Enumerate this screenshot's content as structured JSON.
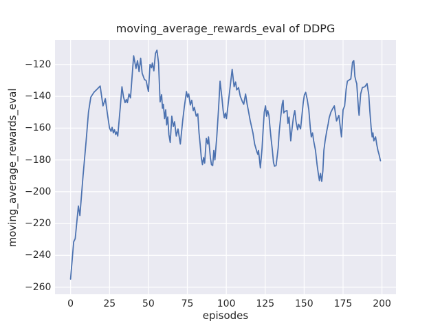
{
  "figure": {
    "background": "#ffffff"
  },
  "chart_data": {
    "type": "line",
    "title": "moving_average_rewards_eval of DDPG",
    "xlabel": "episodes",
    "ylabel": "moving_average_rewards_eval",
    "x_ticks": [
      0,
      25,
      50,
      75,
      100,
      125,
      150,
      175,
      200
    ],
    "x_tick_labels": [
      "0",
      "25",
      "50",
      "75",
      "100",
      "125",
      "150",
      "175",
      "200"
    ],
    "y_ticks": [
      -120,
      -140,
      -160,
      -180,
      -200,
      -220,
      -240,
      -260
    ],
    "y_tick_labels": [
      "−120",
      "−140",
      "−160",
      "−180",
      "−200",
      "−220",
      "−240",
      "−260"
    ],
    "xlim": [
      -10,
      209
    ],
    "ylim": [
      -264.5,
      -104.5
    ],
    "grid": true,
    "legend_position": "none",
    "style": {
      "plot_background": "#eaeaf2",
      "grid_color": "#ffffff",
      "line_color": "#4c72b0",
      "text_color": "#262626",
      "line_width": 1.8
    },
    "series": [
      {
        "name": "moving_average_rewards_eval",
        "points": [
          [
            0,
            -255
          ],
          [
            2,
            -231.5
          ],
          [
            3,
            -229.5
          ],
          [
            5,
            -209
          ],
          [
            6,
            -215
          ],
          [
            8,
            -190
          ],
          [
            10,
            -168
          ],
          [
            11.5,
            -150
          ],
          [
            13,
            -140.5
          ],
          [
            15,
            -137.5
          ],
          [
            17,
            -135.5
          ],
          [
            19,
            -133.5
          ],
          [
            20.8,
            -146
          ],
          [
            22.3,
            -141.5
          ],
          [
            23.5,
            -150
          ],
          [
            25,
            -160
          ],
          [
            26,
            -162
          ],
          [
            26.7,
            -159.5
          ],
          [
            27.5,
            -163
          ],
          [
            28.2,
            -161
          ],
          [
            29,
            -164
          ],
          [
            29.6,
            -162.5
          ],
          [
            30.3,
            -165
          ],
          [
            31,
            -157
          ],
          [
            32,
            -146
          ],
          [
            33,
            -134
          ],
          [
            34,
            -140.5
          ],
          [
            35,
            -144
          ],
          [
            35.8,
            -142
          ],
          [
            36.5,
            -144
          ],
          [
            37.5,
            -138.5
          ],
          [
            38.5,
            -141
          ],
          [
            40.5,
            -114.5
          ],
          [
            42,
            -122.5
          ],
          [
            43,
            -117.5
          ],
          [
            44,
            -124.5
          ],
          [
            45,
            -116
          ],
          [
            46,
            -125.5
          ],
          [
            47.5,
            -129.5
          ],
          [
            48.5,
            -130
          ],
          [
            50,
            -137
          ],
          [
            51,
            -120
          ],
          [
            52,
            -122
          ],
          [
            52.5,
            -119
          ],
          [
            53.5,
            -124
          ],
          [
            54.5,
            -113
          ],
          [
            55.5,
            -111
          ],
          [
            56.5,
            -119
          ],
          [
            57.5,
            -143.5
          ],
          [
            58.5,
            -139
          ],
          [
            59,
            -147.5
          ],
          [
            59.6,
            -145
          ],
          [
            60.4,
            -154
          ],
          [
            61.1,
            -148.5
          ],
          [
            61.7,
            -158
          ],
          [
            62.4,
            -153
          ],
          [
            63.1,
            -164
          ],
          [
            64,
            -169
          ],
          [
            65,
            -152.5
          ],
          [
            66,
            -159
          ],
          [
            66.8,
            -156
          ],
          [
            67.9,
            -165
          ],
          [
            69,
            -160.5
          ],
          [
            70.5,
            -170
          ],
          [
            72,
            -155.5
          ],
          [
            73,
            -147
          ],
          [
            74.4,
            -137
          ],
          [
            75.1,
            -140.5
          ],
          [
            75.9,
            -138.5
          ],
          [
            76.9,
            -145.5
          ],
          [
            77.8,
            -142.5
          ],
          [
            78.8,
            -149
          ],
          [
            79.5,
            -147
          ],
          [
            80.7,
            -152.5
          ],
          [
            81.7,
            -151
          ],
          [
            82.5,
            -163
          ],
          [
            83.2,
            -170
          ],
          [
            84,
            -179
          ],
          [
            84.7,
            -183
          ],
          [
            85.4,
            -178.5
          ],
          [
            86.1,
            -182
          ],
          [
            87.2,
            -166.5
          ],
          [
            88.1,
            -170
          ],
          [
            88.6,
            -165.5
          ],
          [
            89.8,
            -178.5
          ],
          [
            90.5,
            -183
          ],
          [
            91.3,
            -183.5
          ],
          [
            92,
            -174
          ],
          [
            92.7,
            -180
          ],
          [
            93.9,
            -165.5
          ],
          [
            95,
            -148.5
          ],
          [
            96,
            -130.5
          ],
          [
            97.2,
            -141
          ],
          [
            98,
            -149
          ],
          [
            98.7,
            -153.5
          ],
          [
            99.4,
            -150.5
          ],
          [
            100.1,
            -154
          ],
          [
            102,
            -138
          ],
          [
            103.8,
            -123
          ],
          [
            105,
            -134
          ],
          [
            106,
            -131
          ],
          [
            106.7,
            -136
          ],
          [
            107.9,
            -134.5
          ],
          [
            109,
            -140
          ],
          [
            110.4,
            -143.5
          ],
          [
            111.2,
            -145
          ],
          [
            112.4,
            -138.5
          ],
          [
            113.4,
            -145
          ],
          [
            114.4,
            -150
          ],
          [
            115.3,
            -155
          ],
          [
            117.1,
            -163
          ],
          [
            118.2,
            -170
          ],
          [
            119.7,
            -175
          ],
          [
            120.3,
            -176.5
          ],
          [
            120.7,
            -174
          ],
          [
            121.9,
            -185
          ],
          [
            123,
            -172.5
          ],
          [
            123.7,
            -160.5
          ],
          [
            124.4,
            -150
          ],
          [
            125.2,
            -146
          ],
          [
            125.9,
            -152.5
          ],
          [
            126.6,
            -149
          ],
          [
            127.4,
            -152
          ],
          [
            128.1,
            -160
          ],
          [
            128.8,
            -167
          ],
          [
            129.6,
            -174
          ],
          [
            130.3,
            -181.5
          ],
          [
            131,
            -184
          ],
          [
            132,
            -183.5
          ],
          [
            133.3,
            -172.5
          ],
          [
            134,
            -162.5
          ],
          [
            135,
            -152.5
          ],
          [
            135.9,
            -145
          ],
          [
            136.5,
            -142.5
          ],
          [
            136.9,
            -150.5
          ],
          [
            137.5,
            -149.5
          ],
          [
            139,
            -149
          ],
          [
            139.6,
            -157
          ],
          [
            140.3,
            -153
          ],
          [
            141.4,
            -168
          ],
          [
            142.3,
            -160
          ],
          [
            143.2,
            -152.5
          ],
          [
            144,
            -149
          ],
          [
            144.8,
            -156
          ],
          [
            145.8,
            -161
          ],
          [
            146.5,
            -157.5
          ],
          [
            147.7,
            -160.5
          ],
          [
            148.6,
            -152
          ],
          [
            149.5,
            -143.5
          ],
          [
            150.2,
            -139
          ],
          [
            151,
            -137.5
          ],
          [
            152,
            -142
          ],
          [
            153,
            -148.5
          ],
          [
            154,
            -160
          ],
          [
            154.6,
            -165.5
          ],
          [
            155.4,
            -163
          ],
          [
            156.1,
            -168
          ],
          [
            157.3,
            -174
          ],
          [
            158.3,
            -183
          ],
          [
            159,
            -188
          ],
          [
            159.8,
            -193
          ],
          [
            160.5,
            -188.5
          ],
          [
            161.3,
            -193.5
          ],
          [
            162,
            -187
          ],
          [
            162.7,
            -174
          ],
          [
            163.5,
            -168
          ],
          [
            164.5,
            -162
          ],
          [
            165.5,
            -157
          ],
          [
            166.1,
            -153.5
          ],
          [
            167.2,
            -150
          ],
          [
            168.2,
            -148
          ],
          [
            169.4,
            -146
          ],
          [
            170.8,
            -155.5
          ],
          [
            172.3,
            -152
          ],
          [
            174,
            -165.5
          ],
          [
            175,
            -148.5
          ],
          [
            176,
            -146
          ],
          [
            177,
            -135.5
          ],
          [
            177.8,
            -130.5
          ],
          [
            180,
            -129
          ],
          [
            181.1,
            -118.5
          ],
          [
            181.9,
            -117.5
          ],
          [
            182.6,
            -127.5
          ],
          [
            183.3,
            -130.5
          ],
          [
            183.8,
            -132
          ],
          [
            184.9,
            -148
          ],
          [
            185.3,
            -152
          ],
          [
            186.3,
            -138.5
          ],
          [
            187.4,
            -134.5
          ],
          [
            189,
            -134
          ],
          [
            190.4,
            -132
          ],
          [
            191.5,
            -139
          ],
          [
            192.2,
            -149.5
          ],
          [
            193,
            -159.5
          ],
          [
            193.7,
            -165.5
          ],
          [
            194.2,
            -163
          ],
          [
            194.8,
            -168
          ],
          [
            195.9,
            -165.5
          ],
          [
            196.7,
            -170.5
          ],
          [
            197.4,
            -174
          ],
          [
            198.1,
            -176.5
          ],
          [
            199,
            -180.5
          ]
        ]
      }
    ]
  }
}
